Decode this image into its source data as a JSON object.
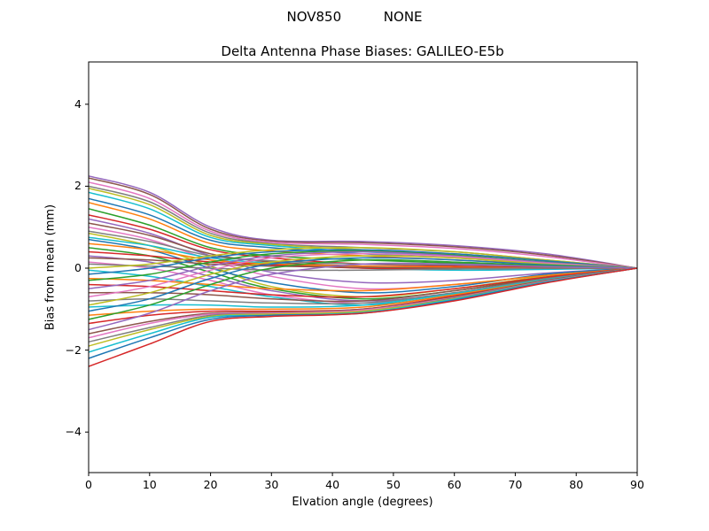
{
  "figure": {
    "suptitle": "NOV850          NONE"
  },
  "chart_data": {
    "type": "line",
    "title": "Delta Antenna Phase Biases: GALILEO-E5b",
    "xlabel": "Elvation angle (degrees)",
    "ylabel": "Bias from mean (mm)",
    "xlim": [
      0,
      90
    ],
    "ylim": [
      -5,
      5
    ],
    "xticks": [
      0,
      10,
      20,
      30,
      40,
      50,
      60,
      70,
      80,
      90
    ],
    "yticks": [
      -4,
      -2,
      0,
      2,
      4
    ],
    "grid": false,
    "legend": "none",
    "x": [
      0,
      10,
      20,
      30,
      45,
      60,
      75,
      90
    ],
    "palette": [
      "#1f77b4",
      "#ff7f0e",
      "#2ca02c",
      "#d62728",
      "#9467bd",
      "#8c564b",
      "#e377c2",
      "#7f7f7f",
      "#bcbd22",
      "#17becf"
    ],
    "series": [
      {
        "color": "#9467bd",
        "values": [
          2.25,
          1.85,
          1.0,
          0.68,
          0.65,
          0.55,
          0.35,
          0
        ]
      },
      {
        "color": "#8c564b",
        "values": [
          2.2,
          1.8,
          0.95,
          0.66,
          0.62,
          0.52,
          0.32,
          0
        ]
      },
      {
        "color": "#e377c2",
        "values": [
          2.1,
          1.7,
          0.9,
          0.63,
          0.58,
          0.48,
          0.28,
          0
        ]
      },
      {
        "color": "#7f7f7f",
        "values": [
          2.0,
          1.62,
          0.85,
          0.6,
          0.5,
          0.4,
          0.2,
          0
        ]
      },
      {
        "color": "#bcbd22",
        "values": [
          1.95,
          1.55,
          0.8,
          0.58,
          0.45,
          0.35,
          0.18,
          0
        ]
      },
      {
        "color": "#17becf",
        "values": [
          1.85,
          1.45,
          0.75,
          0.55,
          0.4,
          0.3,
          0.15,
          0
        ]
      },
      {
        "color": "#1f77b4",
        "values": [
          1.7,
          1.3,
          0.68,
          0.5,
          0.35,
          0.25,
          0.12,
          0
        ]
      },
      {
        "color": "#ff7f0e",
        "values": [
          1.6,
          1.2,
          0.6,
          0.42,
          0.3,
          0.2,
          0.1,
          0
        ]
      },
      {
        "color": "#2ca02c",
        "values": [
          1.45,
          1.05,
          0.5,
          0.3,
          0.2,
          0.12,
          0.06,
          0
        ]
      },
      {
        "color": "#d62728",
        "values": [
          1.3,
          0.95,
          0.45,
          0.25,
          0.1,
          0.05,
          0.02,
          0
        ]
      },
      {
        "color": "#9467bd",
        "values": [
          1.2,
          0.85,
          0.3,
          -0.1,
          -0.35,
          -0.3,
          -0.12,
          0
        ]
      },
      {
        "color": "#8c564b",
        "values": [
          1.1,
          0.8,
          0.35,
          0.15,
          0.05,
          0,
          -0.02,
          0
        ]
      },
      {
        "color": "#e377c2",
        "values": [
          1.0,
          0.7,
          0.2,
          -0.2,
          -0.5,
          -0.4,
          -0.18,
          0
        ]
      },
      {
        "color": "#7f7f7f",
        "values": [
          0.9,
          0.65,
          0.3,
          0.18,
          0.1,
          0.08,
          0.04,
          0
        ]
      },
      {
        "color": "#bcbd22",
        "values": [
          0.85,
          0.55,
          0.05,
          -0.45,
          -0.7,
          -0.5,
          -0.2,
          0
        ]
      },
      {
        "color": "#17becf",
        "values": [
          0.75,
          0.55,
          0.25,
          0.12,
          0,
          -0.05,
          -0.03,
          0
        ]
      },
      {
        "color": "#1f77b4",
        "values": [
          0.7,
          0.45,
          0,
          -0.35,
          -0.6,
          -0.45,
          -0.15,
          0
        ]
      },
      {
        "color": "#ff7f0e",
        "values": [
          0.6,
          0.45,
          0.2,
          0.1,
          0.05,
          0.02,
          0,
          0
        ]
      },
      {
        "color": "#2ca02c",
        "values": [
          0.5,
          0.3,
          -0.1,
          -0.5,
          -0.75,
          -0.55,
          -0.22,
          0
        ]
      },
      {
        "color": "#d62728",
        "values": [
          0.4,
          0.3,
          0.15,
          0.08,
          0,
          -0.02,
          0,
          0
        ]
      },
      {
        "color": "#9467bd",
        "values": [
          0.3,
          0.15,
          -0.2,
          -0.55,
          -0.8,
          -0.6,
          -0.25,
          0
        ]
      },
      {
        "color": "#8c564b",
        "values": [
          0.25,
          0.2,
          0.1,
          0.05,
          0.02,
          0,
          0,
          0
        ]
      },
      {
        "color": "#e377c2",
        "values": [
          0.15,
          0,
          -0.3,
          -0.65,
          -0.85,
          -0.62,
          -0.28,
          0
        ]
      },
      {
        "color": "#7f7f7f",
        "values": [
          0.1,
          0.05,
          0,
          -0.05,
          -0.05,
          -0.02,
          0,
          0
        ]
      },
      {
        "color": "#bcbd22",
        "values": [
          0,
          0.1,
          0.3,
          0.45,
          0.5,
          0.4,
          0.2,
          0
        ]
      },
      {
        "color": "#17becf",
        "values": [
          -0.05,
          -0.2,
          -0.45,
          -0.7,
          -0.9,
          -0.65,
          -0.3,
          0
        ]
      },
      {
        "color": "#1f77b4",
        "values": [
          -0.15,
          0,
          0.25,
          0.4,
          0.45,
          0.35,
          0.18,
          0
        ]
      },
      {
        "color": "#ff7f0e",
        "values": [
          -0.25,
          -0.3,
          -0.4,
          -0.5,
          -0.55,
          -0.4,
          -0.18,
          0
        ]
      },
      {
        "color": "#2ca02c",
        "values": [
          -0.3,
          -0.15,
          0.15,
          0.35,
          0.42,
          0.32,
          0.15,
          0
        ]
      },
      {
        "color": "#d62728",
        "values": [
          -0.4,
          -0.45,
          -0.55,
          -0.65,
          -0.7,
          -0.5,
          -0.22,
          0
        ]
      },
      {
        "color": "#9467bd",
        "values": [
          -0.5,
          -0.3,
          0.05,
          0.3,
          0.4,
          0.3,
          0.14,
          0
        ]
      },
      {
        "color": "#8c564b",
        "values": [
          -0.6,
          -0.6,
          -0.65,
          -0.75,
          -0.8,
          -0.55,
          -0.25,
          0
        ]
      },
      {
        "color": "#e377c2",
        "values": [
          -0.7,
          -0.45,
          -0.05,
          0.25,
          0.35,
          0.28,
          0.12,
          0
        ]
      },
      {
        "color": "#7f7f7f",
        "values": [
          -0.8,
          -0.75,
          -0.8,
          -0.85,
          -0.85,
          -0.6,
          -0.26,
          0
        ]
      },
      {
        "color": "#bcbd22",
        "values": [
          -0.9,
          -0.6,
          -0.15,
          0.15,
          0.3,
          0.25,
          0.1,
          0
        ]
      },
      {
        "color": "#17becf",
        "values": [
          -0.95,
          -0.9,
          -0.9,
          -0.95,
          -0.9,
          -0.62,
          -0.28,
          0
        ]
      },
      {
        "color": "#1f77b4",
        "values": [
          -1.05,
          -0.75,
          -0.25,
          0.1,
          0.25,
          0.2,
          0.08,
          0
        ]
      },
      {
        "color": "#ff7f0e",
        "values": [
          -1.15,
          -1.05,
          -1.0,
          -1.0,
          -0.95,
          -0.65,
          -0.3,
          0
        ]
      },
      {
        "color": "#2ca02c",
        "values": [
          -1.25,
          -0.9,
          -0.4,
          0,
          0.2,
          0.15,
          0.06,
          0
        ]
      },
      {
        "color": "#d62728",
        "values": [
          -1.35,
          -1.15,
          -1.05,
          -1.05,
          -1.0,
          -0.68,
          -0.32,
          0
        ]
      },
      {
        "color": "#9467bd",
        "values": [
          -1.5,
          -1.1,
          -0.55,
          -0.15,
          0.1,
          0.1,
          0.04,
          0
        ]
      },
      {
        "color": "#8c564b",
        "values": [
          -1.6,
          -1.3,
          -1.1,
          -1.08,
          -1.0,
          -0.7,
          -0.3,
          0
        ]
      },
      {
        "color": "#e377c2",
        "values": [
          -1.7,
          -1.35,
          -1.12,
          -1.1,
          -1.02,
          -0.72,
          -0.32,
          0
        ]
      },
      {
        "color": "#7f7f7f",
        "values": [
          -1.8,
          -1.45,
          -1.15,
          -1.12,
          -1.05,
          -0.73,
          -0.33,
          0
        ]
      },
      {
        "color": "#bcbd22",
        "values": [
          -1.9,
          -1.5,
          -1.18,
          -1.12,
          -1.05,
          -0.75,
          -0.34,
          0
        ]
      },
      {
        "color": "#17becf",
        "values": [
          -2.05,
          -1.6,
          -1.2,
          -1.15,
          -1.08,
          -0.76,
          -0.34,
          0
        ]
      },
      {
        "color": "#1f77b4",
        "values": [
          -2.2,
          -1.7,
          -1.25,
          -1.15,
          -1.1,
          -0.78,
          -0.35,
          0
        ]
      },
      {
        "color": "#d62728",
        "values": [
          -2.4,
          -1.85,
          -1.3,
          -1.18,
          -1.1,
          -0.8,
          -0.36,
          0
        ]
      }
    ]
  }
}
